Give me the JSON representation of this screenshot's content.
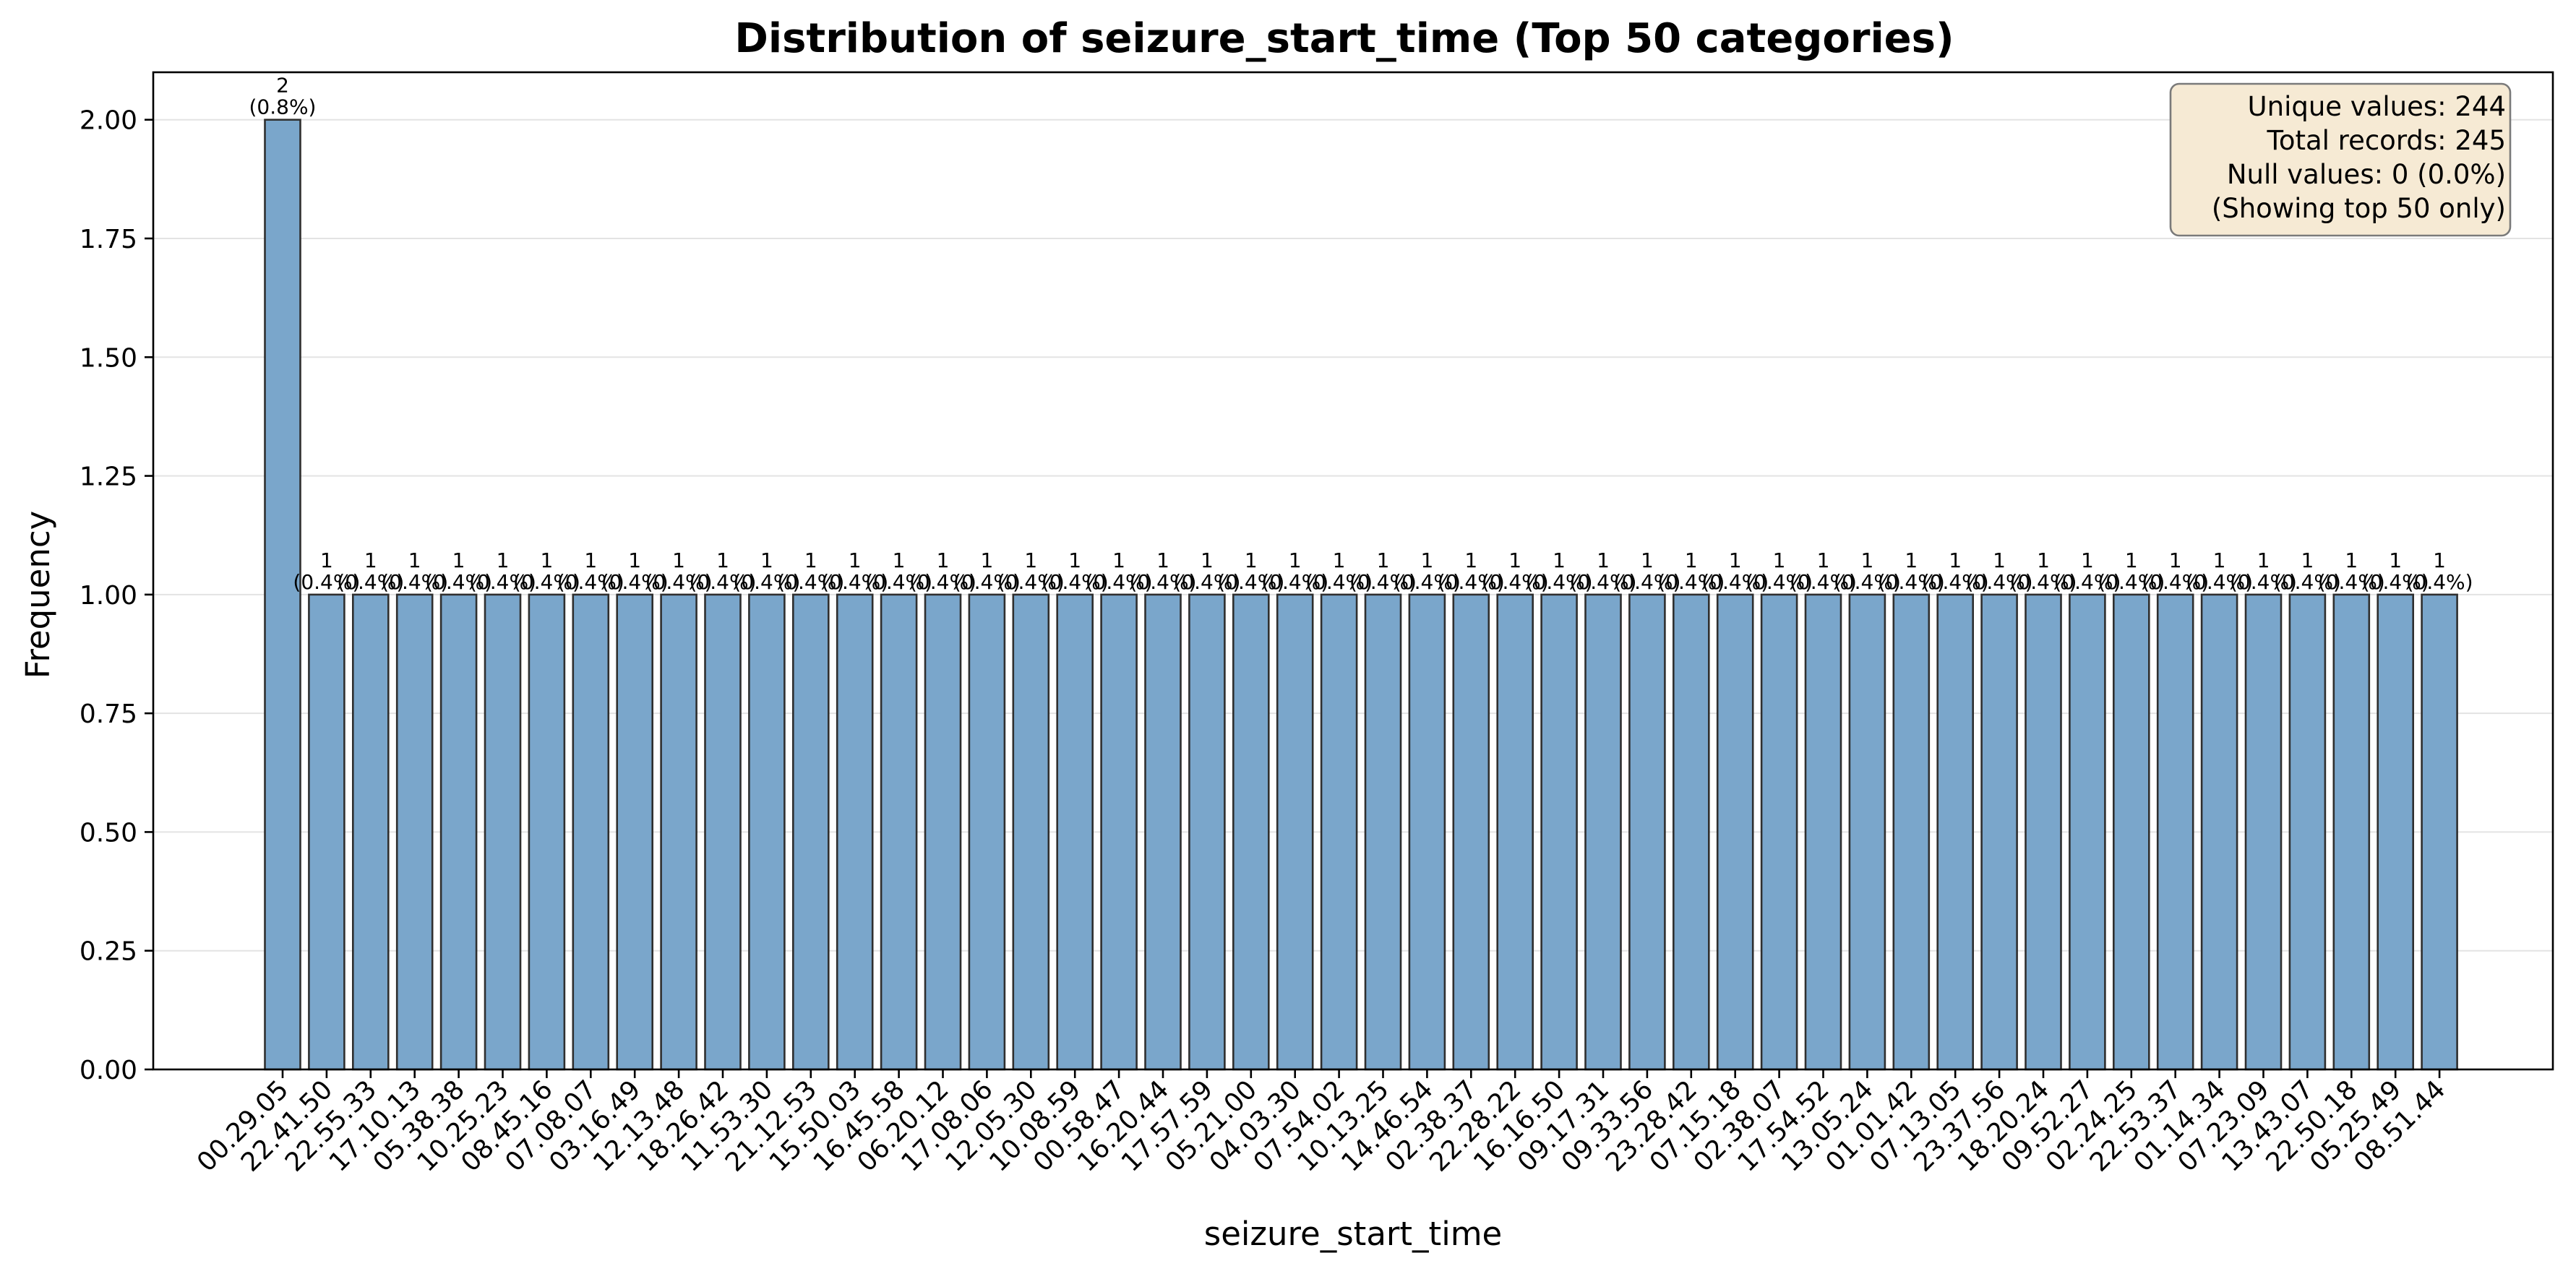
{
  "chart_data": {
    "type": "bar",
    "title": "Distribution of seizure_start_time (Top 50 categories)",
    "xlabel": "seizure_start_time",
    "ylabel": "Frequency",
    "ylim": [
      0,
      2.1
    ],
    "yticks": [
      "0.00",
      "0.25",
      "0.50",
      "0.75",
      "1.00",
      "1.25",
      "1.50",
      "1.75",
      "2.00"
    ],
    "grid": "horizontal",
    "bar_color": "#7aa6cb",
    "bar_edge_color": "#2f2f2f",
    "categories": [
      "00.29.05",
      "22.41.50",
      "22.55.33",
      "17.10.13",
      "05.38.38",
      "10.25.23",
      "08.45.16",
      "07.08.07",
      "03.16.49",
      "12.13.48",
      "18.26.42",
      "11.53.30",
      "21.12.53",
      "15.50.03",
      "16.45.58",
      "06.20.12",
      "17.08.06",
      "12.05.30",
      "10.08.59",
      "00.58.47",
      "16.20.44",
      "17.57.59",
      "05.21.00",
      "04.03.30",
      "07.54.02",
      "10.13.25",
      "14.46.54",
      "02.38.37",
      "22.28.22",
      "16.16.50",
      "09.17.31",
      "09.33.56",
      "23.28.42",
      "07.15.18",
      "02.38.07",
      "17.54.52",
      "13.05.24",
      "01.01.42",
      "07.13.05",
      "23.37.56",
      "18.20.24",
      "09.52.27",
      "02.24.25",
      "22.53.37",
      "01.14.34",
      "07.23.09",
      "13.43.07",
      "22.50.18",
      "05.25.49",
      "08.51.44"
    ],
    "values": [
      2,
      1,
      1,
      1,
      1,
      1,
      1,
      1,
      1,
      1,
      1,
      1,
      1,
      1,
      1,
      1,
      1,
      1,
      1,
      1,
      1,
      1,
      1,
      1,
      1,
      1,
      1,
      1,
      1,
      1,
      1,
      1,
      1,
      1,
      1,
      1,
      1,
      1,
      1,
      1,
      1,
      1,
      1,
      1,
      1,
      1,
      1,
      1,
      1,
      1
    ],
    "percent_labels": [
      "(0.8%)",
      "(0.4%)",
      "(0.4%)",
      "(0.4%)",
      "(0.4%)",
      "(0.4%)",
      "(0.4%)",
      "(0.4%)",
      "(0.4%)",
      "(0.4%)",
      "(0.4%)",
      "(0.4%)",
      "(0.4%)",
      "(0.4%)",
      "(0.4%)",
      "(0.4%)",
      "(0.4%)",
      "(0.4%)",
      "(0.4%)",
      "(0.4%)",
      "(0.4%)",
      "(0.4%)",
      "(0.4%)",
      "(0.4%)",
      "(0.4%)",
      "(0.4%)",
      "(0.4%)",
      "(0.4%)",
      "(0.4%)",
      "(0.4%)",
      "(0.4%)",
      "(0.4%)",
      "(0.4%)",
      "(0.4%)",
      "(0.4%)",
      "(0.4%)",
      "(0.4%)",
      "(0.4%)",
      "(0.4%)",
      "(0.4%)",
      "(0.4%)",
      "(0.4%)",
      "(0.4%)",
      "(0.4%)",
      "(0.4%)",
      "(0.4%)",
      "(0.4%)",
      "(0.4%)",
      "(0.4%)",
      "(0.4%)"
    ],
    "info_box": {
      "lines": [
        "Unique values: 244",
        "Total records: 245",
        "Null values: 0 (0.0%)",
        "(Showing top 50 only)"
      ],
      "placement": "top-right",
      "background": "#f6ead4",
      "border_color": "#7a7a7a"
    }
  }
}
